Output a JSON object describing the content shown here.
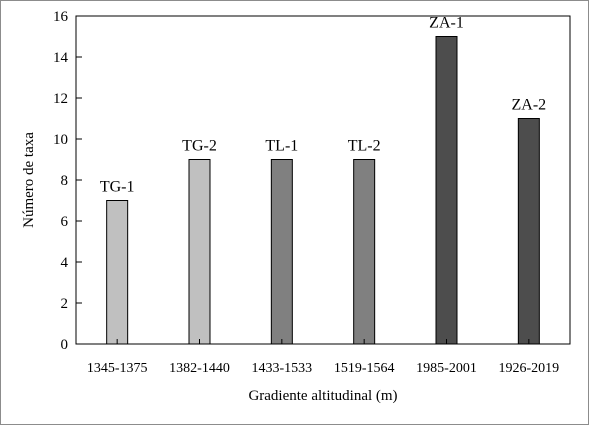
{
  "chart_data": {
    "type": "bar",
    "title": "",
    "xlabel": "Gradiente altitudinal (m)",
    "ylabel": "Número de taxa",
    "ylim": [
      0,
      16
    ],
    "yticks": [
      0,
      2,
      4,
      6,
      8,
      10,
      12,
      14,
      16
    ],
    "grid": false,
    "legend": "none",
    "categories": [
      "1345-1375",
      "1382-1440",
      "1433-1533",
      "1519-1564",
      "1985-2001",
      "1926-2019"
    ],
    "values": [
      7,
      9,
      9,
      9,
      15,
      11
    ],
    "bar_labels": [
      "TG-1",
      "TG-2",
      "TL-1",
      "TL-2",
      "ZA-1",
      "ZA-2"
    ],
    "bar_colors": [
      "#c0c0c0",
      "#c0c0c0",
      "#808080",
      "#808080",
      "#4d4d4d",
      "#4d4d4d"
    ]
  }
}
